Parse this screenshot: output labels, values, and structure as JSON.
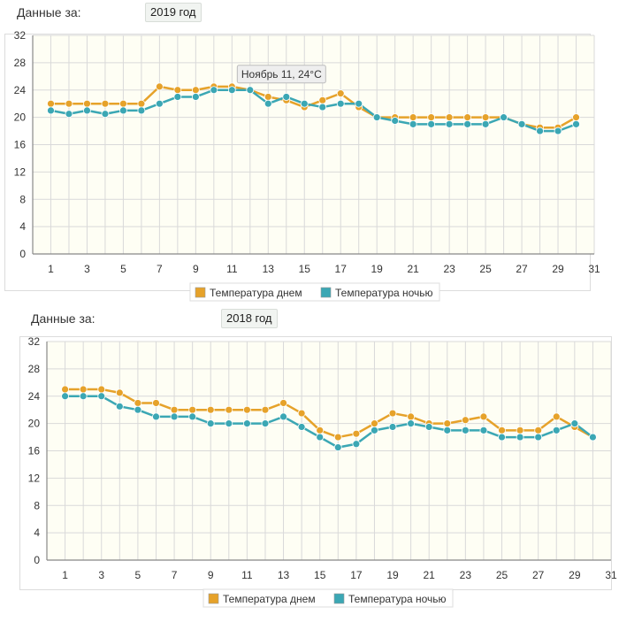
{
  "sections": [
    {
      "label": "Данные за:",
      "year": "2019 год",
      "tooltip": "Ноябрь 11, 24°C"
    },
    {
      "label": "Данные за:",
      "year": "2018 год"
    }
  ],
  "colors": {
    "day": "#e6a22a",
    "night": "#3ba7b4",
    "plot_bg": "#fefef4",
    "grid": "#d9d9d9"
  },
  "chart_data": [
    {
      "type": "line",
      "x": [
        1,
        2,
        3,
        4,
        5,
        6,
        7,
        8,
        9,
        10,
        11,
        12,
        13,
        14,
        15,
        16,
        17,
        18,
        19,
        20,
        21,
        22,
        23,
        24,
        25,
        26,
        27,
        28,
        29,
        30
      ],
      "series": [
        {
          "name": "Температура днем",
          "values": [
            22,
            22,
            22,
            22,
            22,
            22,
            24.5,
            24,
            24,
            24.5,
            24.5,
            24,
            23,
            22.5,
            21.5,
            22.5,
            23.5,
            21.5,
            20,
            20,
            20,
            20,
            20,
            20,
            20,
            20,
            19,
            18.5,
            18.5,
            20
          ]
        },
        {
          "name": "Температура ночью",
          "values": [
            21,
            20.5,
            21,
            20.5,
            21,
            21,
            22,
            23,
            23,
            24,
            24,
            24,
            22,
            23,
            22,
            21.5,
            22,
            22,
            20,
            19.5,
            19,
            19,
            19,
            19,
            19,
            20,
            19,
            18,
            18,
            19
          ]
        }
      ],
      "xticks": [
        "1",
        "3",
        "5",
        "7",
        "9",
        "11",
        "13",
        "15",
        "17",
        "19",
        "21",
        "23",
        "25",
        "27",
        "29",
        "31"
      ],
      "yticks": [
        "0",
        "4",
        "8",
        "12",
        "16",
        "20",
        "24",
        "28",
        "32"
      ],
      "xlim": [
        0,
        31
      ],
      "ylim": [
        0,
        32
      ],
      "grid": true,
      "legend": "bottom"
    },
    {
      "type": "line",
      "x": [
        1,
        2,
        3,
        4,
        5,
        6,
        7,
        8,
        9,
        10,
        11,
        12,
        13,
        14,
        15,
        16,
        17,
        18,
        19,
        20,
        21,
        22,
        23,
        24,
        25,
        26,
        27,
        28,
        29,
        30
      ],
      "series": [
        {
          "name": "Температура днем",
          "values": [
            25,
            25,
            25,
            24.5,
            23,
            23,
            22,
            22,
            22,
            22,
            22,
            22,
            23,
            21.5,
            19,
            18,
            18.5,
            20,
            21.5,
            21,
            20,
            20,
            20.5,
            21,
            19,
            19,
            19,
            21,
            19.5,
            18
          ]
        },
        {
          "name": "Температура ночью",
          "values": [
            24,
            24,
            24,
            22.5,
            22,
            21,
            21,
            21,
            20,
            20,
            20,
            20,
            21,
            19.5,
            18,
            16.5,
            17,
            19,
            19.5,
            20,
            19.5,
            19,
            19,
            19,
            18,
            18,
            18,
            19,
            20,
            18
          ]
        }
      ],
      "xticks": [
        "1",
        "3",
        "5",
        "7",
        "9",
        "11",
        "13",
        "15",
        "17",
        "19",
        "21",
        "23",
        "25",
        "27",
        "29",
        "31"
      ],
      "yticks": [
        "0",
        "4",
        "8",
        "12",
        "16",
        "20",
        "24",
        "28",
        "32"
      ],
      "xlim": [
        0,
        31
      ],
      "ylim": [
        0,
        32
      ],
      "grid": true,
      "legend": "bottom"
    }
  ]
}
